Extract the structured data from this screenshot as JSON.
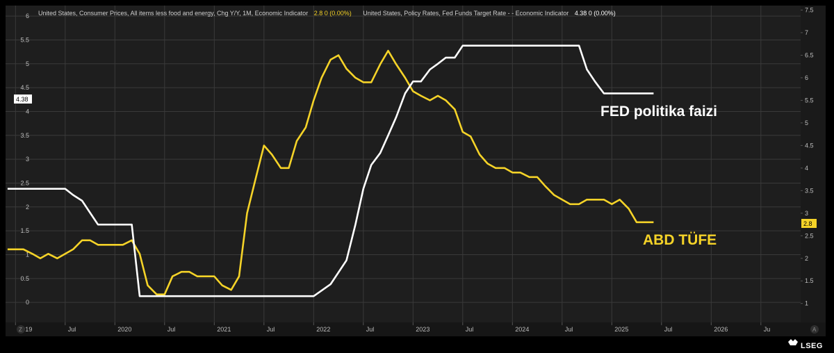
{
  "legend": {
    "cpi_label": "United States, Consumer Prices, All items less food and energy, Chg Y/Y, 1M, Economic Indicator",
    "cpi_value": "2.8  0 (0.00%)",
    "fed_label": "United States, Policy Rates, Fed Funds Target Rate -  - Economic Indicator",
    "fed_value": "4.38  0 (0.00%)"
  },
  "annotations": {
    "fed": "FED politika faizi",
    "cpi": "ABD TÜFE"
  },
  "badges": {
    "left": "4.38",
    "right": "2.8"
  },
  "corner": {
    "left": "Z",
    "right": "A"
  },
  "brand": "LSEG",
  "colors": {
    "background": "#1e1e1e",
    "cpi": "#f5d328",
    "fed": "#ffffff",
    "grid": "#3a3a3a"
  },
  "chart_data": {
    "type": "line",
    "x_axis": {
      "range": [
        2018.9,
        2026.9
      ],
      "ticks": [
        {
          "pos": 2019.0,
          "label": "2019"
        },
        {
          "pos": 2019.5,
          "label": "Jul"
        },
        {
          "pos": 2020.0,
          "label": "2020"
        },
        {
          "pos": 2020.5,
          "label": "Jul"
        },
        {
          "pos": 2021.0,
          "label": "2021"
        },
        {
          "pos": 2021.5,
          "label": "Jul"
        },
        {
          "pos": 2022.0,
          "label": "2022"
        },
        {
          "pos": 2022.5,
          "label": "Jul"
        },
        {
          "pos": 2023.0,
          "label": "2023"
        },
        {
          "pos": 2023.5,
          "label": "Jul"
        },
        {
          "pos": 2024.0,
          "label": "2024"
        },
        {
          "pos": 2024.5,
          "label": "Jul"
        },
        {
          "pos": 2025.0,
          "label": "2025"
        },
        {
          "pos": 2025.5,
          "label": "Jul"
        },
        {
          "pos": 2026.0,
          "label": "2026"
        },
        {
          "pos": 2026.5,
          "label": "Ju"
        }
      ]
    },
    "y_left": {
      "range": [
        -0.42,
        6.22
      ],
      "ticks": [
        0,
        0.5,
        1,
        1.5,
        2,
        2.5,
        3,
        3.5,
        4,
        4.5,
        5,
        5.5,
        6
      ]
    },
    "y_right": {
      "range": [
        0.58,
        7.6
      ],
      "ticks": [
        1,
        1.5,
        2,
        2.5,
        3,
        3.5,
        4,
        4.5,
        5,
        5.5,
        6,
        6.5,
        7,
        7.5
      ]
    },
    "series": [
      {
        "name": "United States, Consumer Prices, All items less food and energy, Chg Y/Y, 1M, Economic Indicator",
        "axis": "right",
        "color": "#f5d328",
        "points": [
          [
            2018.92,
            2.2
          ],
          [
            2019.0,
            2.2
          ],
          [
            2019.08,
            2.2
          ],
          [
            2019.17,
            2.1
          ],
          [
            2019.25,
            2.0
          ],
          [
            2019.33,
            2.1
          ],
          [
            2019.42,
            2.0
          ],
          [
            2019.5,
            2.1
          ],
          [
            2019.58,
            2.2
          ],
          [
            2019.67,
            2.4
          ],
          [
            2019.75,
            2.4
          ],
          [
            2019.83,
            2.3
          ],
          [
            2019.92,
            2.3
          ],
          [
            2020.0,
            2.3
          ],
          [
            2020.08,
            2.3
          ],
          [
            2020.17,
            2.4
          ],
          [
            2020.25,
            2.1
          ],
          [
            2020.33,
            1.4
          ],
          [
            2020.42,
            1.2
          ],
          [
            2020.5,
            1.2
          ],
          [
            2020.58,
            1.6
          ],
          [
            2020.67,
            1.7
          ],
          [
            2020.75,
            1.7
          ],
          [
            2020.83,
            1.6
          ],
          [
            2020.92,
            1.6
          ],
          [
            2021.0,
            1.6
          ],
          [
            2021.08,
            1.4
          ],
          [
            2021.17,
            1.3
          ],
          [
            2021.25,
            1.6
          ],
          [
            2021.33,
            3.0
          ],
          [
            2021.42,
            3.8
          ],
          [
            2021.5,
            4.5
          ],
          [
            2021.58,
            4.3
          ],
          [
            2021.67,
            4.0
          ],
          [
            2021.75,
            4.0
          ],
          [
            2021.83,
            4.6
          ],
          [
            2021.92,
            4.9
          ],
          [
            2022.0,
            5.5
          ],
          [
            2022.08,
            6.0
          ],
          [
            2022.17,
            6.4
          ],
          [
            2022.25,
            6.5
          ],
          [
            2022.33,
            6.2
          ],
          [
            2022.42,
            6.0
          ],
          [
            2022.5,
            5.9
          ],
          [
            2022.58,
            5.9
          ],
          [
            2022.67,
            6.3
          ],
          [
            2022.75,
            6.6
          ],
          [
            2022.83,
            6.3
          ],
          [
            2022.92,
            6.0
          ],
          [
            2023.0,
            5.7
          ],
          [
            2023.08,
            5.6
          ],
          [
            2023.17,
            5.5
          ],
          [
            2023.25,
            5.6
          ],
          [
            2023.33,
            5.5
          ],
          [
            2023.42,
            5.3
          ],
          [
            2023.5,
            4.8
          ],
          [
            2023.58,
            4.7
          ],
          [
            2023.67,
            4.3
          ],
          [
            2023.75,
            4.1
          ],
          [
            2023.83,
            4.0
          ],
          [
            2023.92,
            4.0
          ],
          [
            2024.0,
            3.9
          ],
          [
            2024.08,
            3.9
          ],
          [
            2024.17,
            3.8
          ],
          [
            2024.25,
            3.8
          ],
          [
            2024.33,
            3.6
          ],
          [
            2024.42,
            3.4
          ],
          [
            2024.5,
            3.3
          ],
          [
            2024.58,
            3.2
          ],
          [
            2024.67,
            3.2
          ],
          [
            2024.75,
            3.3
          ],
          [
            2024.83,
            3.3
          ],
          [
            2024.92,
            3.3
          ],
          [
            2025.0,
            3.2
          ],
          [
            2025.08,
            3.3
          ],
          [
            2025.17,
            3.1
          ],
          [
            2025.25,
            2.8
          ],
          [
            2025.33,
            2.8
          ],
          [
            2025.42,
            2.8
          ]
        ]
      },
      {
        "name": "United States, Policy Rates, Fed Funds Target Rate -  - Economic Indicator",
        "axis": "left",
        "color": "#ffffff",
        "points": [
          [
            2018.92,
            2.38
          ],
          [
            2018.97,
            2.38
          ],
          [
            2019.0,
            2.38
          ],
          [
            2019.08,
            2.38
          ],
          [
            2019.17,
            2.38
          ],
          [
            2019.25,
            2.38
          ],
          [
            2019.33,
            2.38
          ],
          [
            2019.42,
            2.38
          ],
          [
            2019.5,
            2.38
          ],
          [
            2019.58,
            2.25
          ],
          [
            2019.67,
            2.13
          ],
          [
            2019.75,
            1.88
          ],
          [
            2019.83,
            1.63
          ],
          [
            2019.92,
            1.63
          ],
          [
            2020.0,
            1.63
          ],
          [
            2020.08,
            1.63
          ],
          [
            2020.17,
            1.63
          ],
          [
            2020.25,
            0.13
          ],
          [
            2020.5,
            0.13
          ],
          [
            2021.0,
            0.13
          ],
          [
            2021.5,
            0.13
          ],
          [
            2022.0,
            0.13
          ],
          [
            2022.17,
            0.38
          ],
          [
            2022.33,
            0.88
          ],
          [
            2022.42,
            1.63
          ],
          [
            2022.5,
            2.38
          ],
          [
            2022.58,
            2.88
          ],
          [
            2022.67,
            3.13
          ],
          [
            2022.75,
            3.5
          ],
          [
            2022.83,
            3.88
          ],
          [
            2022.92,
            4.38
          ],
          [
            2023.0,
            4.63
          ],
          [
            2023.08,
            4.63
          ],
          [
            2023.17,
            4.88
          ],
          [
            2023.25,
            5.0
          ],
          [
            2023.33,
            5.13
          ],
          [
            2023.42,
            5.13
          ],
          [
            2023.5,
            5.38
          ],
          [
            2023.58,
            5.38
          ],
          [
            2023.67,
            5.38
          ],
          [
            2024.0,
            5.38
          ],
          [
            2024.5,
            5.38
          ],
          [
            2024.67,
            5.38
          ],
          [
            2024.75,
            4.88
          ],
          [
            2024.83,
            4.63
          ],
          [
            2024.92,
            4.38
          ],
          [
            2025.0,
            4.38
          ],
          [
            2025.25,
            4.38
          ],
          [
            2025.42,
            4.38
          ]
        ]
      }
    ],
    "grid": true
  }
}
